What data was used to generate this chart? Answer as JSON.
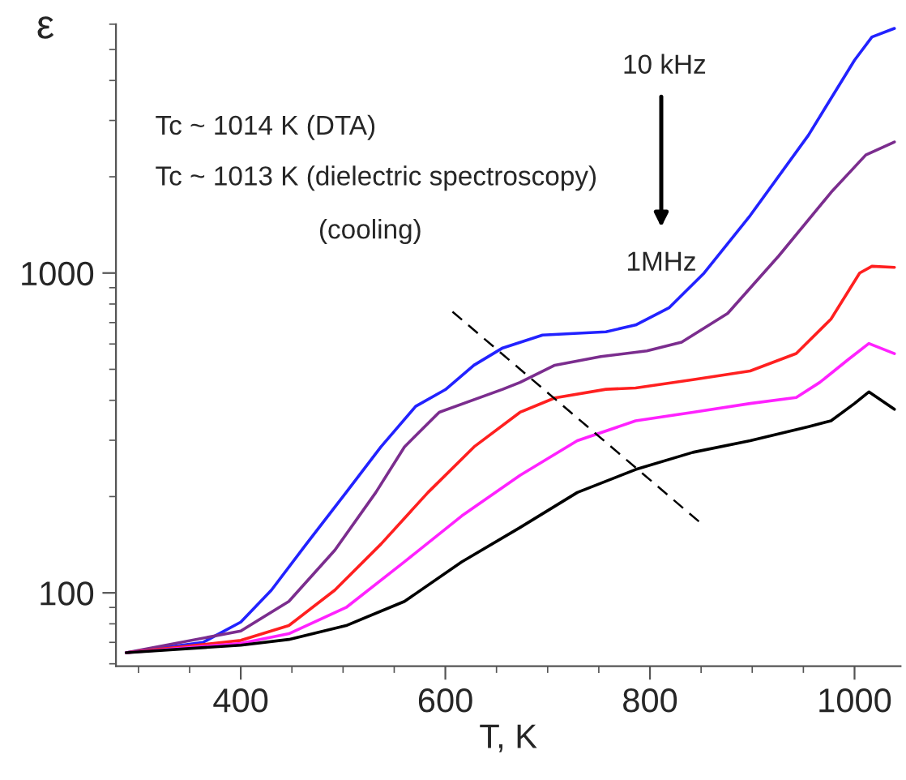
{
  "chart_data": {
    "type": "line",
    "xlabel": "T, K",
    "ylabel": "ε",
    "xlim": [
      278,
      1045
    ],
    "xticks": [
      400,
      600,
      800,
      1000
    ],
    "ylim": [
      59,
      6000
    ],
    "yticks": [
      100,
      1000
    ],
    "log": "y",
    "grid": false,
    "legend": false,
    "marker": "none",
    "line_style": "solid",
    "annotations": [
      "Tc ~ 1014 K (DTA)",
      "Tc ~ 1013 K (dielectric spectroscopy)",
      "(cooling)",
      "10 kHz",
      "1MHz"
    ],
    "series": [
      {
        "color": "#2222ff",
        "x": [
          288,
          363,
          400,
          430,
          464,
          503,
          537,
          571,
          600,
          628,
          656,
          695,
          757,
          786,
          819,
          853,
          898,
          955,
          1000,
          1017,
          1039
        ],
        "values": [
          65,
          70,
          81,
          102,
          142,
          206,
          286,
          383,
          432,
          515,
          583,
          640,
          655,
          688,
          780,
          1000,
          1513,
          2700,
          4630,
          5470,
          5820
        ]
      },
      {
        "color": "#7b2d8e",
        "x": [
          288,
          400,
          447,
          492,
          532,
          560,
          594,
          656,
          673,
          707,
          752,
          797,
          831,
          876,
          926,
          977,
          1011,
          1039
        ],
        "values": [
          65,
          76,
          94,
          136,
          206,
          286,
          367,
          433,
          455,
          515,
          548,
          571,
          608,
          748,
          1132,
          1787,
          2340,
          2570
        ]
      },
      {
        "color": "#ff2020",
        "x": [
          288,
          400,
          447,
          492,
          537,
          583,
          628,
          673,
          707,
          757,
          786,
          842,
          898,
          943,
          977,
          1005,
          1017,
          1039
        ],
        "values": [
          65,
          71,
          79,
          102,
          142,
          206,
          286,
          367,
          407,
          433,
          437,
          464,
          494,
          560,
          718,
          1000,
          1050,
          1042
        ]
      },
      {
        "color": "#ff22ff",
        "x": [
          288,
          400,
          447,
          503,
          560,
          616,
          673,
          729,
          786,
          842,
          898,
          943,
          966,
          994,
          1014,
          1039
        ],
        "values": [
          65,
          69.5,
          74.5,
          90,
          125,
          174,
          233,
          299,
          345,
          367,
          391,
          408,
          455,
          537,
          602,
          560
        ]
      },
      {
        "color": "#000000",
        "x": [
          288,
          400,
          447,
          503,
          560,
          616,
          673,
          729,
          786,
          842,
          898,
          955,
          977,
          1000,
          1014,
          1039
        ],
        "values": [
          65,
          68.6,
          71.5,
          79,
          94,
          125,
          160,
          206,
          243,
          275,
          299,
          331,
          345,
          391,
          425,
          375
        ]
      },
      {
        "color": "#000000",
        "line_style": "dashed",
        "x": [
          607,
          848
        ],
        "values": [
          757,
          167
        ]
      }
    ]
  }
}
